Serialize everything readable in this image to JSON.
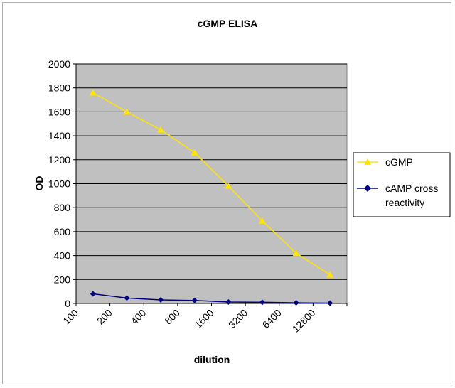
{
  "chart_data": {
    "type": "line",
    "title": "cGMP ELISA",
    "xlabel": "dilution",
    "ylabel": "OD",
    "categories": [
      "100",
      "200",
      "400",
      "800",
      "1600",
      "3200",
      "6400",
      "12800"
    ],
    "ylim": [
      0,
      2000
    ],
    "yticks": [
      0,
      200,
      400,
      600,
      800,
      1000,
      1200,
      1400,
      1600,
      1800,
      2000
    ],
    "grid": true,
    "legend_position": "right",
    "series": [
      {
        "name": "cGMP",
        "values": [
          1760,
          1600,
          1450,
          1260,
          980,
          690,
          420,
          240
        ],
        "color": "#ffe500",
        "marker": "triangle"
      },
      {
        "name": "cAMP cross reactivity",
        "values": [
          80,
          45,
          30,
          25,
          12,
          10,
          5,
          3
        ],
        "color": "#000080",
        "marker": "diamond"
      }
    ],
    "plot_background": "#c0c0c0"
  }
}
